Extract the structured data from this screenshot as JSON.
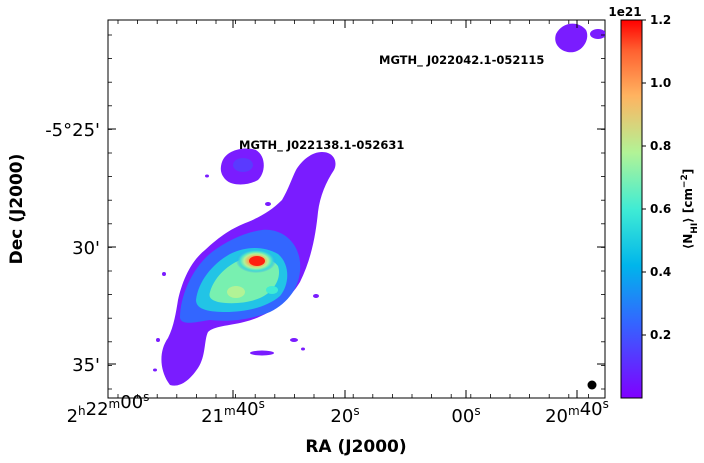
{
  "chart_data": {
    "type": "heatmap",
    "xlabel": "RA (J2000)",
    "ylabel": "Dec (J2000)",
    "x_ticks": [
      "2h22m00s",
      "21m40s",
      "20s",
      "00s",
      "20m40s"
    ],
    "y_ticks": [
      "-5°25'",
      "30'",
      "35'"
    ],
    "colorbar": {
      "label": "⟨N_HI⟩ [cm^-2]",
      "scale_factor_label": "1e21",
      "ticks": [
        0.2,
        0.4,
        0.6,
        0.8,
        1.0,
        1.2
      ],
      "tick_labels": [
        "0.2",
        "0.4",
        "0.6",
        "0.8",
        "1.0",
        "1.2"
      ],
      "range": [
        0.0,
        1.2
      ],
      "colormap": "rainbow"
    },
    "annotations": [
      "MGTH_ J022138.1-052631",
      "MGTH_ J022042.1-052115"
    ],
    "beam": "filled black circle, lower right"
  }
}
